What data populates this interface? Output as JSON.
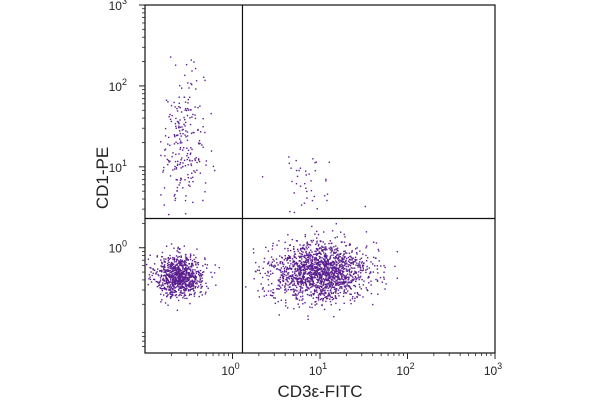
{
  "chart_data": {
    "type": "scatter",
    "title": "",
    "xlabel": "CD3ε-FITC",
    "ylabel": "CD1-PE",
    "x_scale": "log",
    "y_scale": "log",
    "xlim": [
      0.1,
      1000
    ],
    "ylim": [
      0.05,
      1000
    ],
    "x_ticks": [
      {
        "value": 1,
        "base": "10",
        "exp": "0"
      },
      {
        "value": 10,
        "base": "10",
        "exp": "1"
      },
      {
        "value": 100,
        "base": "10",
        "exp": "2"
      },
      {
        "value": 1000,
        "base": "10",
        "exp": "3"
      }
    ],
    "y_ticks": [
      {
        "value": 1,
        "base": "10",
        "exp": "0"
      },
      {
        "value": 10,
        "base": "10",
        "exp": "1"
      },
      {
        "value": 100,
        "base": "10",
        "exp": "2"
      },
      {
        "value": 1000,
        "base": "10",
        "exp": "3"
      }
    ],
    "point_color": "#5b1f8f",
    "grid": false,
    "quadrant_gates": {
      "x": 1.3,
      "y": 2.3
    },
    "populations": [
      {
        "name": "",
        "n": 900,
        "x_center": 0.25,
        "x_spread": 0.14,
        "y_center": 0.45,
        "y_spread": 0.13
      },
      {
        "name": "",
        "n": 240,
        "x_center": 0.28,
        "x_spread": 0.12,
        "y_center": 18.0,
        "y_spread": 0.45
      },
      {
        "name": "",
        "n": 1700,
        "x_center": 10.0,
        "x_spread": 0.28,
        "y_center": 0.5,
        "y_spread": 0.18
      },
      {
        "name": "",
        "n": 40,
        "x_center": 7.0,
        "x_spread": 0.18,
        "y_center": 6.0,
        "y_spread": 0.2
      }
    ]
  }
}
